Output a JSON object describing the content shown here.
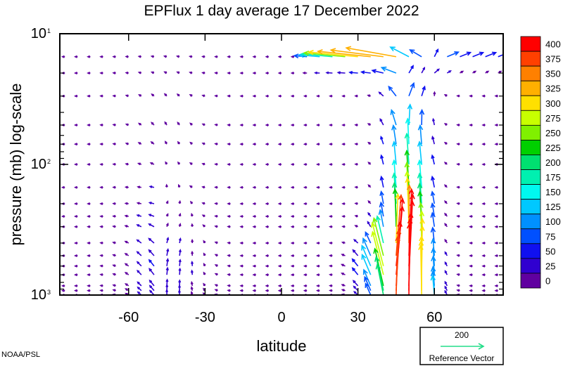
{
  "chart_data": {
    "type": "vector-field",
    "title": "EPFlux  1 day average  17 December  2022",
    "xlabel": "latitude",
    "ylabel": "pressure (mb)  log-scale",
    "x_ticks": [
      {
        "value": -60,
        "label": "-60"
      },
      {
        "value": -30,
        "label": "-30"
      },
      {
        "value": 0,
        "label": "0"
      },
      {
        "value": 30,
        "label": "30"
      },
      {
        "value": 60,
        "label": "60"
      }
    ],
    "y_ticks": [
      {
        "value": 10,
        "base": "10",
        "exp": "1"
      },
      {
        "value": 100,
        "base": "10",
        "exp": "2"
      },
      {
        "value": 1000,
        "base": "10",
        "exp": "3"
      }
    ],
    "xlim": [
      -87,
      87
    ],
    "ylim": [
      1000,
      10
    ],
    "y_scale": "log",
    "colorbar": {
      "levels": [
        "400",
        "375",
        "350",
        "325",
        "300",
        "275",
        "250",
        "225",
        "200",
        "175",
        "150",
        "125",
        "100",
        "75",
        "50",
        "25",
        "0"
      ],
      "colors": [
        "#ff0000",
        "#ff4000",
        "#ff8000",
        "#ffb000",
        "#ffe000",
        "#c8ff00",
        "#80f000",
        "#00d000",
        "#00e070",
        "#00f0b0",
        "#00f8f0",
        "#00c8ff",
        "#0090ff",
        "#0050ff",
        "#1010f0",
        "#3000d0",
        "#6000a0"
      ]
    },
    "reference_vector": {
      "magnitude": "200",
      "label": "Reference Vector",
      "color": "#22dd88"
    },
    "credit": "NOAA/PSL",
    "levels_mb": [
      15,
      20,
      30,
      50,
      70,
      100,
      150,
      200,
      250,
      300,
      400,
      500,
      600,
      700,
      850,
      925,
      1000
    ],
    "latitudes": [
      -85,
      -80,
      -75,
      -70,
      -65,
      -60,
      -55,
      -50,
      -45,
      -40,
      -35,
      -30,
      -25,
      -20,
      -15,
      -10,
      -5,
      0,
      5,
      10,
      15,
      20,
      25,
      30,
      35,
      40,
      45,
      50,
      55,
      60,
      65,
      70,
      75,
      80,
      85
    ]
  }
}
